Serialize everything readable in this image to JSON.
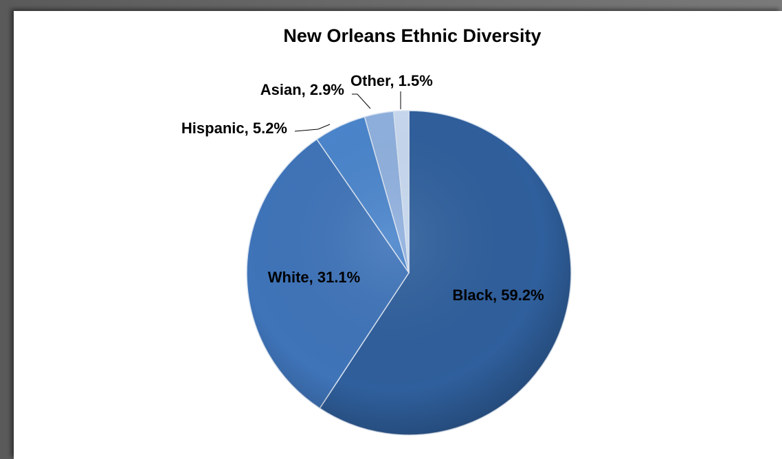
{
  "chart_data": {
    "type": "pie",
    "title": "New Orleans Ethnic Diversity",
    "slices": [
      {
        "label": "Black",
        "value": 59.2,
        "display": "Black, 59.2%",
        "color": "#2f5f9c"
      },
      {
        "label": "White",
        "value": 31.1,
        "display": "White, 31.1%",
        "color": "#3f74b9"
      },
      {
        "label": "Hispanic",
        "value": 5.2,
        "display": "Hispanic, 5.2%",
        "color": "#4a85cc"
      },
      {
        "label": "Asian",
        "value": 2.9,
        "display": "Asian, 2.9%",
        "color": "#8fb0de"
      },
      {
        "label": "Other",
        "value": 1.5,
        "display": "Other, 1.5%",
        "color": "#c7d8ef"
      }
    ],
    "start_angle": "12 o'clock",
    "direction": "clockwise",
    "labels": "category, percent",
    "legend": "none"
  }
}
